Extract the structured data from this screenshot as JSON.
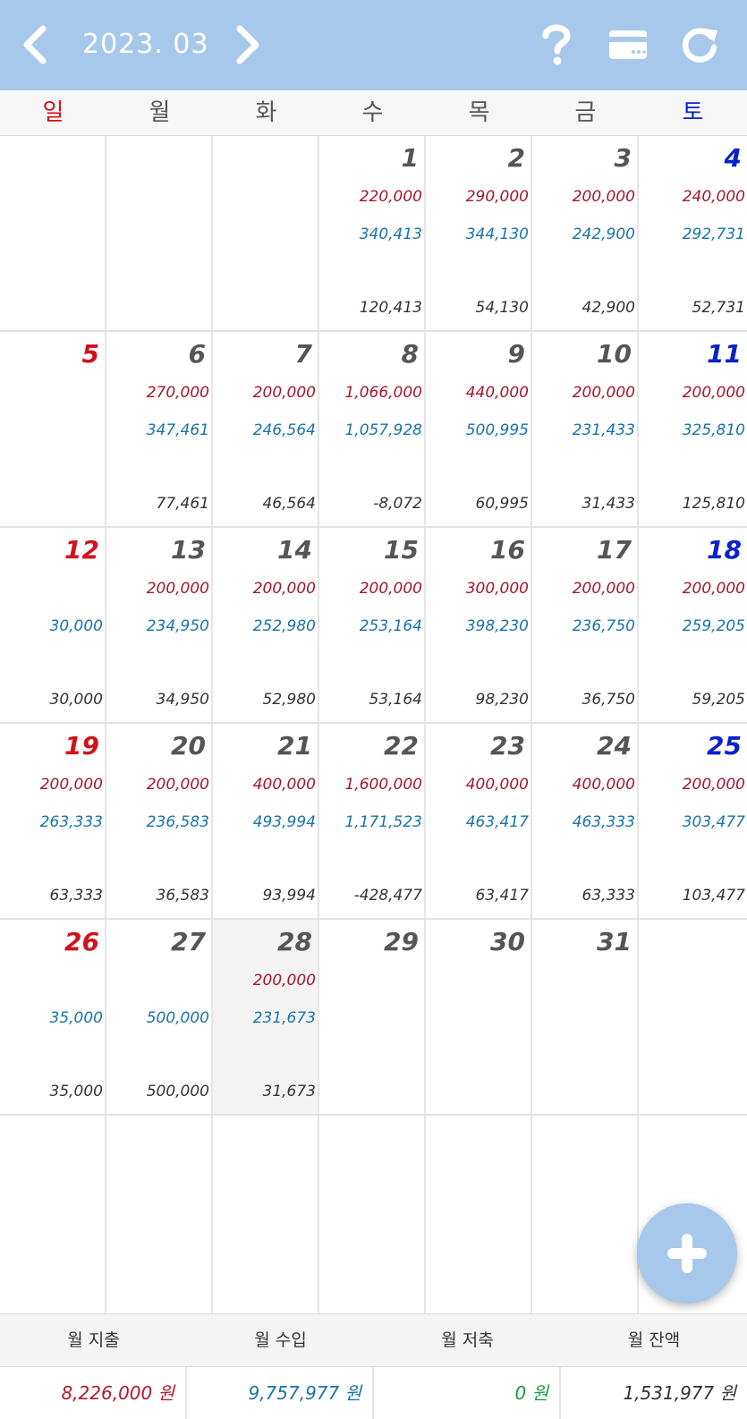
{
  "header": {
    "month": "2023. 03",
    "icons": [
      "chevron-left-icon",
      "chevron-right-icon",
      "help-icon",
      "card-icon",
      "refresh-icon"
    ]
  },
  "weekdays": [
    "일",
    "월",
    "화",
    "수",
    "목",
    "금",
    "토"
  ],
  "days": [
    {
      "d": "1",
      "exp": "220,000",
      "inc": "340,413",
      "bal": "120,413"
    },
    {
      "d": "2",
      "exp": "290,000",
      "inc": "344,130",
      "bal": "54,130"
    },
    {
      "d": "3",
      "exp": "200,000",
      "inc": "242,900",
      "bal": "42,900"
    },
    {
      "d": "4",
      "exp": "240,000",
      "inc": "292,731",
      "bal": "52,731"
    },
    {
      "d": "5",
      "exp": "",
      "inc": "",
      "bal": ""
    },
    {
      "d": "6",
      "exp": "270,000",
      "inc": "347,461",
      "bal": "77,461"
    },
    {
      "d": "7",
      "exp": "200,000",
      "inc": "246,564",
      "bal": "46,564"
    },
    {
      "d": "8",
      "exp": "1,066,000",
      "inc": "1,057,928",
      "bal": "-8,072"
    },
    {
      "d": "9",
      "exp": "440,000",
      "inc": "500,995",
      "bal": "60,995"
    },
    {
      "d": "10",
      "exp": "200,000",
      "inc": "231,433",
      "bal": "31,433"
    },
    {
      "d": "11",
      "exp": "200,000",
      "inc": "325,810",
      "bal": "125,810"
    },
    {
      "d": "12",
      "exp": "",
      "inc": "30,000",
      "bal": "30,000"
    },
    {
      "d": "13",
      "exp": "200,000",
      "inc": "234,950",
      "bal": "34,950"
    },
    {
      "d": "14",
      "exp": "200,000",
      "inc": "252,980",
      "bal": "52,980"
    },
    {
      "d": "15",
      "exp": "200,000",
      "inc": "253,164",
      "bal": "53,164"
    },
    {
      "d": "16",
      "exp": "300,000",
      "inc": "398,230",
      "bal": "98,230"
    },
    {
      "d": "17",
      "exp": "200,000",
      "inc": "236,750",
      "bal": "36,750"
    },
    {
      "d": "18",
      "exp": "200,000",
      "inc": "259,205",
      "bal": "59,205"
    },
    {
      "d": "19",
      "exp": "200,000",
      "inc": "263,333",
      "bal": "63,333"
    },
    {
      "d": "20",
      "exp": "200,000",
      "inc": "236,583",
      "bal": "36,583"
    },
    {
      "d": "21",
      "exp": "400,000",
      "inc": "493,994",
      "bal": "93,994"
    },
    {
      "d": "22",
      "exp": "1,600,000",
      "inc": "1,171,523",
      "bal": "-428,477"
    },
    {
      "d": "23",
      "exp": "400,000",
      "inc": "463,417",
      "bal": "63,417"
    },
    {
      "d": "24",
      "exp": "400,000",
      "inc": "463,333",
      "bal": "63,333"
    },
    {
      "d": "25",
      "exp": "200,000",
      "inc": "303,477",
      "bal": "103,477"
    },
    {
      "d": "26",
      "exp": "",
      "inc": "35,000",
      "bal": "35,000"
    },
    {
      "d": "27",
      "exp": "",
      "inc": "500,000",
      "bal": "500,000"
    },
    {
      "d": "28",
      "exp": "200,000",
      "inc": "231,673",
      "bal": "31,673"
    },
    {
      "d": "29",
      "exp": "",
      "inc": "",
      "bal": ""
    },
    {
      "d": "30",
      "exp": "",
      "inc": "",
      "bal": ""
    },
    {
      "d": "31",
      "exp": "",
      "inc": "",
      "bal": ""
    }
  ],
  "summary": {
    "labels": [
      "월 지출",
      "월 수입",
      "월 저축",
      "월 잔액"
    ],
    "values": [
      "8,226,000 원",
      "9,757,977 원",
      "0 원",
      "1,531,977 원"
    ],
    "colors": [
      "#b5182f",
      "#1a73a8",
      "#1e9a3c",
      "#333333"
    ]
  },
  "colors": {
    "header": "#a7c8ea",
    "sunday": "#d0121b",
    "saturday": "#0a23c8",
    "expense": "#a3162d",
    "income": "#1a73a8"
  }
}
